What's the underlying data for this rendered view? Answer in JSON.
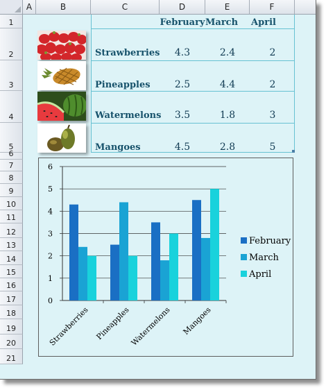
{
  "columns": [
    "A",
    "B",
    "C",
    "D",
    "E",
    "F"
  ],
  "rows": [
    "1",
    "2",
    "3",
    "4",
    "5",
    "6",
    "7",
    "8",
    "9",
    "10",
    "11",
    "12",
    "13",
    "14",
    "15",
    "16",
    "17",
    "18",
    "19",
    "20",
    "21"
  ],
  "table": {
    "headers": [
      "February",
      "March",
      "April"
    ],
    "fruits": [
      {
        "name": "Strawberries",
        "values": [
          "4.3",
          "2.4",
          "2"
        ]
      },
      {
        "name": "Pineapples",
        "values": [
          "2.5",
          "4.4",
          "2"
        ]
      },
      {
        "name": "Watermelons",
        "values": [
          "3.5",
          "1.8",
          "3"
        ]
      },
      {
        "name": "Mangoes",
        "values": [
          "4.5",
          "2.8",
          "5"
        ]
      }
    ]
  },
  "images": [
    "strawberries-photo",
    "pineapple-photo",
    "watermelon-photo",
    "mango-photo"
  ],
  "chart_data": {
    "type": "bar",
    "categories": [
      "Strawberries",
      "Pineapples",
      "Watermelons",
      "Mangoes"
    ],
    "series": [
      {
        "name": "February",
        "values": [
          4.3,
          2.5,
          3.5,
          4.5
        ],
        "color": "#1a6fc4"
      },
      {
        "name": "March",
        "values": [
          2.4,
          4.4,
          1.8,
          2.8
        ],
        "color": "#1aa3d4"
      },
      {
        "name": "April",
        "values": [
          2,
          2,
          3,
          5
        ],
        "color": "#19d2dc"
      }
    ],
    "ylim": [
      0,
      6
    ],
    "yticks": [
      "0",
      "1",
      "2",
      "3",
      "4",
      "5",
      "6"
    ],
    "grid": true,
    "legend": "right",
    "title": "",
    "xlabel": "",
    "ylabel": ""
  }
}
